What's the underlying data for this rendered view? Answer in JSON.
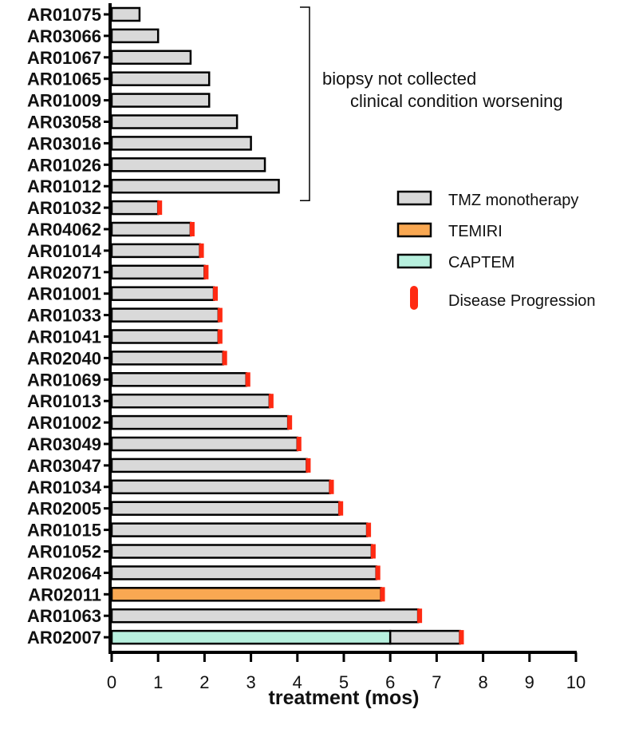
{
  "chart_data": {
    "type": "bar",
    "orientation": "horizontal",
    "xlabel": "treatment (mos)",
    "xlim": [
      0,
      10
    ],
    "xticks": [
      "0",
      "1",
      "2",
      "3",
      "4",
      "5",
      "6",
      "7",
      "8",
      "9",
      "10"
    ],
    "grid": false,
    "legend": {
      "placement": "right",
      "items": [
        {
          "label": "TMZ monotherapy",
          "color": "#d9d9d9",
          "kind": "box"
        },
        {
          "label": "TEMIRI",
          "color": "#f9a852",
          "kind": "box"
        },
        {
          "label": "CAPTEM",
          "color": "#b7f0de",
          "kind": "box"
        },
        {
          "label": "Disease Progression",
          "color": "#ff2a12",
          "kind": "tick"
        }
      ]
    },
    "annotation": {
      "lines": [
        "biopsy not collected",
        "clinical condition worsening"
      ],
      "brackets_from": "AR01075",
      "brackets_to": "AR01012"
    },
    "colors": {
      "TMZ": "#d9d9d9",
      "TEMIRI": "#f9a852",
      "CAPTEM": "#b7f0de",
      "progression": "#ff2a12"
    },
    "patients": [
      {
        "id": "AR01075",
        "segments": [
          {
            "therapy": "TMZ",
            "end": 0.6
          }
        ],
        "progression": false
      },
      {
        "id": "AR03066",
        "segments": [
          {
            "therapy": "TMZ",
            "end": 1.0
          }
        ],
        "progression": false
      },
      {
        "id": "AR01067",
        "segments": [
          {
            "therapy": "TMZ",
            "end": 1.7
          }
        ],
        "progression": false
      },
      {
        "id": "AR01065",
        "segments": [
          {
            "therapy": "TMZ",
            "end": 2.1
          }
        ],
        "progression": false
      },
      {
        "id": "AR01009",
        "segments": [
          {
            "therapy": "TMZ",
            "end": 2.1
          }
        ],
        "progression": false
      },
      {
        "id": "AR03058",
        "segments": [
          {
            "therapy": "TMZ",
            "end": 2.7
          }
        ],
        "progression": false
      },
      {
        "id": "AR03016",
        "segments": [
          {
            "therapy": "TMZ",
            "end": 3.0
          }
        ],
        "progression": false
      },
      {
        "id": "AR01026",
        "segments": [
          {
            "therapy": "TMZ",
            "end": 3.3
          }
        ],
        "progression": false
      },
      {
        "id": "AR01012",
        "segments": [
          {
            "therapy": "TMZ",
            "end": 3.6
          }
        ],
        "progression": false
      },
      {
        "id": "AR01032",
        "segments": [
          {
            "therapy": "TMZ",
            "end": 1.0
          }
        ],
        "progression": true
      },
      {
        "id": "AR04062",
        "segments": [
          {
            "therapy": "TMZ",
            "end": 1.7
          }
        ],
        "progression": true
      },
      {
        "id": "AR01014",
        "segments": [
          {
            "therapy": "TMZ",
            "end": 1.9
          }
        ],
        "progression": true
      },
      {
        "id": "AR02071",
        "segments": [
          {
            "therapy": "TMZ",
            "end": 2.0
          }
        ],
        "progression": true
      },
      {
        "id": "AR01001",
        "segments": [
          {
            "therapy": "TMZ",
            "end": 2.2
          }
        ],
        "progression": true
      },
      {
        "id": "AR01033",
        "segments": [
          {
            "therapy": "TMZ",
            "end": 2.3
          }
        ],
        "progression": true
      },
      {
        "id": "AR01041",
        "segments": [
          {
            "therapy": "TMZ",
            "end": 2.3
          }
        ],
        "progression": true
      },
      {
        "id": "AR02040",
        "segments": [
          {
            "therapy": "TMZ",
            "end": 2.4
          }
        ],
        "progression": true
      },
      {
        "id": "AR01069",
        "segments": [
          {
            "therapy": "TMZ",
            "end": 2.9
          }
        ],
        "progression": true
      },
      {
        "id": "AR01013",
        "segments": [
          {
            "therapy": "TMZ",
            "end": 3.4
          }
        ],
        "progression": true
      },
      {
        "id": "AR01002",
        "segments": [
          {
            "therapy": "TMZ",
            "end": 3.8
          }
        ],
        "progression": true
      },
      {
        "id": "AR03049",
        "segments": [
          {
            "therapy": "TMZ",
            "end": 4.0
          }
        ],
        "progression": true
      },
      {
        "id": "AR03047",
        "segments": [
          {
            "therapy": "TMZ",
            "end": 4.2
          }
        ],
        "progression": true
      },
      {
        "id": "AR01034",
        "segments": [
          {
            "therapy": "TMZ",
            "end": 4.7
          }
        ],
        "progression": true
      },
      {
        "id": "AR02005",
        "segments": [
          {
            "therapy": "TMZ",
            "end": 4.9
          }
        ],
        "progression": true
      },
      {
        "id": "AR01015",
        "segments": [
          {
            "therapy": "TMZ",
            "end": 5.5
          }
        ],
        "progression": true
      },
      {
        "id": "AR01052",
        "segments": [
          {
            "therapy": "TMZ",
            "end": 5.6
          }
        ],
        "progression": true
      },
      {
        "id": "AR02064",
        "segments": [
          {
            "therapy": "TMZ",
            "end": 5.7
          }
        ],
        "progression": true
      },
      {
        "id": "AR02011",
        "segments": [
          {
            "therapy": "TEMIRI",
            "end": 5.8
          }
        ],
        "progression": true
      },
      {
        "id": "AR01063",
        "segments": [
          {
            "therapy": "TMZ",
            "end": 6.6
          }
        ],
        "progression": true
      },
      {
        "id": "AR02007",
        "segments": [
          {
            "therapy": "CAPTEM",
            "end": 6.0
          },
          {
            "therapy": "TMZ",
            "end": 7.5
          }
        ],
        "progression": true
      }
    ]
  }
}
